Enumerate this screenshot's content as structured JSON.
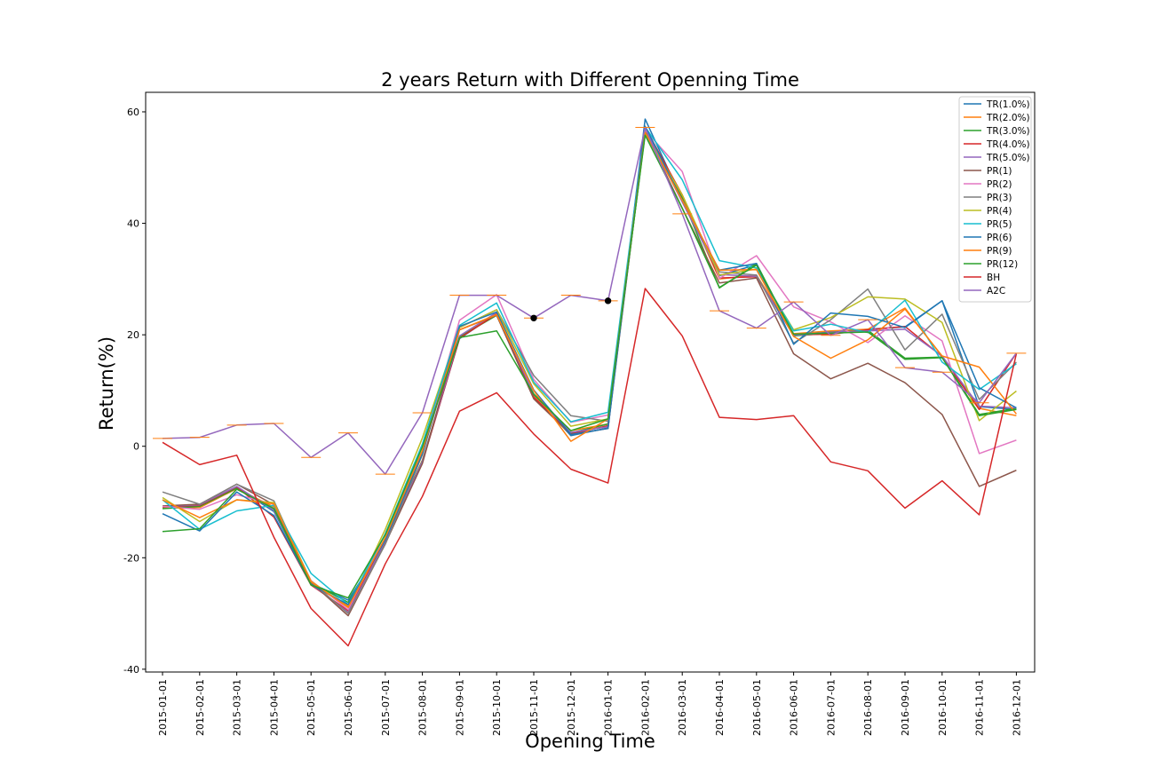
{
  "chart_data": {
    "type": "line",
    "title": "2 years Return with Different Openning Time",
    "xlabel": "Opening Time",
    "ylabel": "Return(%)",
    "ylim": [
      -40.5,
      63.5
    ],
    "yticks": [
      -40,
      -20,
      0,
      20,
      40,
      60
    ],
    "grid": false,
    "legend_position": "top-right",
    "categories": [
      "2015-01-01",
      "2015-02-01",
      "2015-03-01",
      "2015-04-01",
      "2015-05-01",
      "2015-06-01",
      "2015-07-01",
      "2015-08-01",
      "2015-09-01",
      "2015-10-01",
      "2015-11-01",
      "2015-12-01",
      "2016-01-01",
      "2016-02-01",
      "2016-03-01",
      "2016-04-01",
      "2016-05-01",
      "2016-06-01",
      "2016-07-01",
      "2016-08-01",
      "2016-09-01",
      "2016-10-01",
      "2016-11-01",
      "2016-12-01"
    ],
    "series": [
      {
        "name": "TR(1.0%)",
        "color": "#1f77b4",
        "values": [
          -11.0,
          -10.7,
          -7.4,
          -11.7,
          -24.6,
          -27.6,
          -17.3,
          -2.8,
          19.3,
          23.8,
          9.1,
          1.9,
          3.3,
          58.7,
          44.2,
          30.6,
          32.6,
          20.0,
          20.5,
          21.0,
          21.4,
          26.1,
          7.1,
          6.6
        ]
      },
      {
        "name": "TR(2.0%)",
        "color": "#ff7f0e",
        "values": [
          -11.1,
          -11.0,
          -7.6,
          -10.9,
          -24.8,
          -28.6,
          -16.8,
          -2.5,
          19.5,
          23.9,
          9.0,
          2.8,
          4.0,
          56.6,
          44.8,
          30.0,
          30.7,
          20.2,
          20.7,
          21.0,
          24.8,
          16.1,
          6.8,
          5.5
        ]
      },
      {
        "name": "TR(3.0%)",
        "color": "#2ca02c",
        "values": [
          -11.2,
          -10.8,
          -7.5,
          -11.2,
          -24.5,
          -28.0,
          -17.0,
          -2.6,
          19.6,
          23.5,
          9.4,
          2.4,
          4.0,
          56.2,
          44.5,
          28.4,
          32.8,
          19.8,
          20.3,
          20.8,
          15.8,
          16.0,
          5.7,
          6.8
        ]
      },
      {
        "name": "TR(4.0%)",
        "color": "#d62728",
        "values": [
          -10.9,
          -10.6,
          -7.3,
          -12.7,
          -24.9,
          -29.5,
          -16.9,
          -2.9,
          19.4,
          23.7,
          8.8,
          2.2,
          3.7,
          57.2,
          45.1,
          30.2,
          30.4,
          20.0,
          20.1,
          20.9,
          21.5,
          16.1,
          6.6,
          16.7
        ]
      },
      {
        "name": "TR(5.0%)",
        "color": "#9467bd",
        "values": [
          -10.8,
          -10.5,
          -7.2,
          -11.5,
          -24.7,
          -29.8,
          -17.1,
          -2.7,
          19.8,
          24.0,
          9.3,
          2.5,
          3.5,
          56.9,
          43.8,
          30.8,
          30.5,
          19.9,
          20.4,
          20.7,
          21.0,
          16.2,
          7.2,
          6.9
        ]
      },
      {
        "name": "PR(1)",
        "color": "#8c564b",
        "values": [
          -10.7,
          -10.4,
          -6.8,
          -10.5,
          -24.4,
          -30.4,
          -17.5,
          -3.1,
          20.9,
          23.5,
          8.5,
          2.1,
          3.2,
          56.6,
          42.7,
          29.3,
          30.2,
          16.6,
          12.1,
          14.9,
          11.4,
          5.7,
          -7.2,
          -4.3
        ]
      },
      {
        "name": "PR(2)",
        "color": "#e377c2",
        "values": [
          -10.8,
          -11.3,
          -8.7,
          -10.4,
          -24.1,
          -29.3,
          -15.7,
          -0.8,
          22.6,
          27.2,
          12.0,
          4.3,
          5.6,
          56.7,
          49.3,
          30.1,
          34.2,
          25.0,
          22.3,
          18.6,
          23.4,
          18.9,
          -1.3,
          1.1
        ]
      },
      {
        "name": "PR(3)",
        "color": "#7f7f7f",
        "values": [
          -8.2,
          -10.4,
          -6.8,
          -9.8,
          -24.3,
          -30.0,
          -17.6,
          -1.5,
          21.3,
          24.5,
          12.7,
          5.5,
          4.5,
          56.1,
          44.2,
          31.3,
          30.7,
          18.5,
          22.7,
          28.2,
          17.3,
          23.7,
          8.4,
          15.1
        ]
      },
      {
        "name": "PR(4)",
        "color": "#bcbd22",
        "values": [
          -9.2,
          -13.5,
          -9.6,
          -10.1,
          -24.2,
          -28.9,
          -14.9,
          1.5,
          21.3,
          24.5,
          11.2,
          3.6,
          4.9,
          56.3,
          45.1,
          30.7,
          31.8,
          20.9,
          23.1,
          26.8,
          26.4,
          22.2,
          4.6,
          9.9
        ]
      },
      {
        "name": "PR(5)",
        "color": "#17becf",
        "values": [
          -9.6,
          -14.9,
          -11.6,
          -10.6,
          -22.8,
          -28.4,
          -15.7,
          0.4,
          21.7,
          25.7,
          11.5,
          4.4,
          6.1,
          57.3,
          47.8,
          33.3,
          32.0,
          20.7,
          21.9,
          20.4,
          26.2,
          15.1,
          10.2,
          14.8
        ]
      },
      {
        "name": "PR(6)",
        "color": "#1f77b4",
        "values": [
          -12.1,
          -15.2,
          -8.2,
          -12.4,
          -24.8,
          -28.4,
          -16.8,
          -1.3,
          21.5,
          24.1,
          10.1,
          2.1,
          3.2,
          57.4,
          44.1,
          31.6,
          32.8,
          18.3,
          23.9,
          23.3,
          21.3,
          26.1,
          10.5,
          6.9
        ]
      },
      {
        "name": "PR(9)",
        "color": "#ff7f0e",
        "values": [
          -9.6,
          -12.8,
          -9.6,
          -10.3,
          -24.3,
          -28.9,
          -16.4,
          -0.8,
          20.9,
          23.6,
          10.0,
          0.9,
          4.9,
          56.3,
          44.1,
          31.6,
          31.7,
          19.7,
          15.8,
          19.1,
          24.6,
          16.2,
          14.2,
          5.8
        ]
      },
      {
        "name": "PR(12)",
        "color": "#2ca02c",
        "values": [
          -15.3,
          -14.8,
          -7.7,
          -11.2,
          -24.9,
          -27.2,
          -15.9,
          -0.1,
          19.5,
          20.7,
          9.3,
          2.8,
          4.9,
          55.8,
          42.7,
          28.5,
          32.5,
          20.1,
          20.3,
          20.5,
          15.6,
          15.9,
          5.5,
          6.6
        ]
      },
      {
        "name": "BH",
        "color": "#d62728",
        "values": [
          0.7,
          -3.3,
          -1.6,
          -16.3,
          -29.1,
          -35.8,
          -21.1,
          -9.0,
          6.3,
          9.6,
          2.2,
          -4.1,
          -6.6,
          28.3,
          19.8,
          5.2,
          4.8,
          5.5,
          -2.8,
          -4.4,
          -11.1,
          -6.2,
          -12.3,
          16.6
        ]
      },
      {
        "name": "A2C",
        "color": "#9467bd",
        "values": [
          1.4,
          1.6,
          3.8,
          4.1,
          -2.0,
          2.4,
          -5.0,
          6.0,
          27.1,
          27.1,
          23.0,
          27.1,
          26.1,
          57.2,
          41.7,
          24.3,
          21.2,
          25.9,
          19.9,
          22.7,
          14.1,
          13.3,
          7.8,
          16.7
        ]
      }
    ],
    "markers": [
      {
        "x": "2015-11-01",
        "y": 23.0
      },
      {
        "x": "2016-01-01",
        "y": 26.1
      }
    ],
    "errorbar_color": "#ff7f0e"
  }
}
